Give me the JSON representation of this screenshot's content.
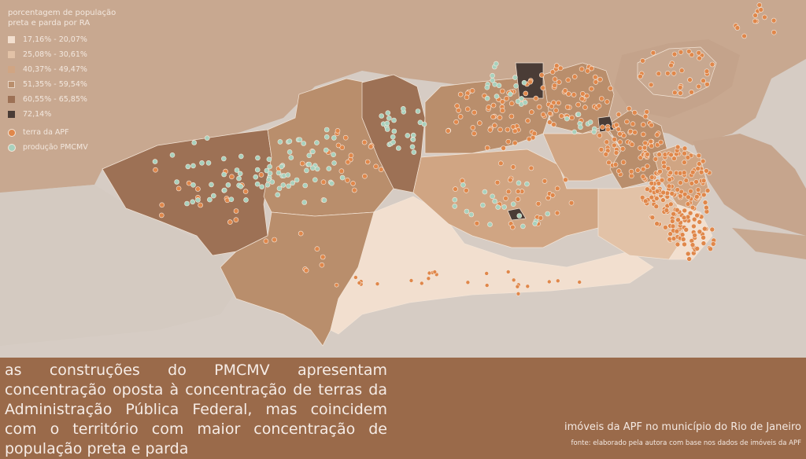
{
  "legend": {
    "title_line1": "porcentagem de população",
    "title_line2": "preta e parda por RA",
    "classes": [
      {
        "label": "17,16% - 20,07%",
        "color": "#f2dfcf"
      },
      {
        "label": "25,08% - 30,61%",
        "color": "#e2c2a7"
      },
      {
        "label": "40,37% - 49,47%",
        "color": "#d0a583"
      },
      {
        "label": "51,35% - 59,54%",
        "color": "#b98e6c"
      },
      {
        "label": "60,55% - 65,85%",
        "color": "#9d7155"
      },
      {
        "label": "72,14%",
        "color": "#4a3c36"
      }
    ],
    "points": [
      {
        "label": "terra da APF",
        "color": "#e0874a"
      },
      {
        "label": "produção PMCMV",
        "color": "#a9d1bd"
      }
    ]
  },
  "caption": "as construções do PMCMV apresentam concentração oposta à concentração de terras da Administração Pública Federal, mas coincidem com o território com maior concentração de população preta e parda",
  "map_title": "imóveis da APF no município do Rio de Janeiro",
  "source": "fonte: elaborado pela autora com base nos dados de imóveis da APF",
  "colors": {
    "background": "#9a6a4a",
    "ocean": "#d8cfc8",
    "land_other": "#c9a890"
  }
}
